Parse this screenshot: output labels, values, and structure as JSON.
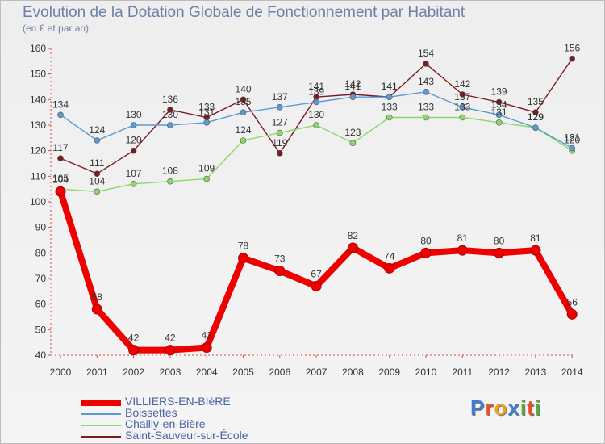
{
  "chart_data": {
    "type": "line",
    "title": "Evolution de la Dotation Globale de Fonctionnement par Habitant",
    "subtitle": "(en € et par an)",
    "xlabel": "",
    "ylabel": "",
    "x": [
      "2000",
      "2001",
      "2002",
      "2003",
      "2004",
      "2005",
      "2006",
      "2007",
      "2008",
      "2009",
      "2010",
      "2011",
      "2012",
      "2013",
      "2014"
    ],
    "ylim": [
      40,
      160
    ],
    "yticks": [
      "40",
      "50",
      "60",
      "70",
      "80",
      "90",
      "100",
      "110",
      "120",
      "130",
      "140",
      "150",
      "160"
    ],
    "grid": false,
    "legend_position": "bottom-left",
    "series": [
      {
        "name": "VILLIERS-EN-BIèRE",
        "color": "#ee0000",
        "values": [
          104,
          58,
          42,
          42,
          43,
          78,
          73,
          67,
          82,
          74,
          80,
          81,
          80,
          81,
          56
        ]
      },
      {
        "name": "Boissettes",
        "color": "#5b9bd5",
        "values": [
          134,
          124,
          130,
          130,
          131,
          135,
          137,
          139,
          141,
          141,
          143,
          137,
          134,
          129,
          121
        ]
      },
      {
        "name": "Chailly-en-Bière",
        "color": "#8bd866",
        "values": [
          105,
          104,
          107,
          108,
          109,
          124,
          127,
          130,
          123,
          133,
          133,
          133,
          131,
          129,
          120
        ]
      },
      {
        "name": "Saint-Sauveur-sur-École",
        "color": "#7a1a22",
        "values": [
          117,
          111,
          120,
          136,
          133,
          140,
          119,
          141,
          142,
          141,
          154,
          142,
          139,
          135,
          156
        ]
      }
    ]
  },
  "logo": {
    "text": "Proxiti",
    "letters": [
      "P",
      "r",
      "o",
      "x",
      "i",
      "t",
      "i"
    ],
    "colors": [
      "#3a7fd5",
      "#e8502a",
      "#f0a020",
      "#3a7fd5",
      "#56b030",
      "#e8502a",
      "#56b030"
    ]
  }
}
